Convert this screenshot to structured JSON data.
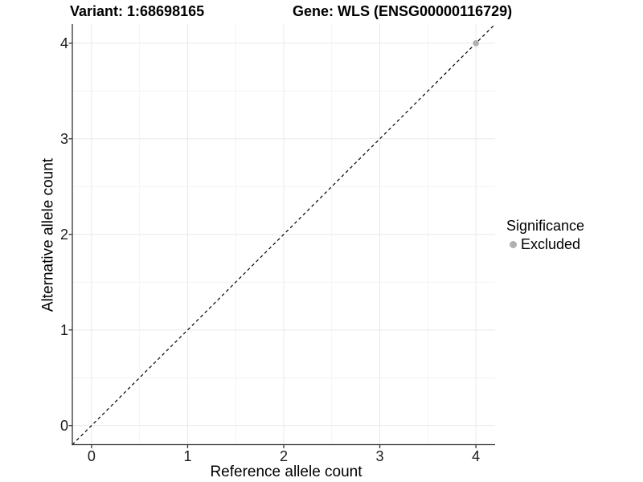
{
  "chart_data": {
    "type": "scatter",
    "title_left": "Variant: 1:68698165",
    "title_right": "Gene: WLS (ENSG00000116729)",
    "xlabel": "Reference allele count",
    "ylabel": "Alternative allele count",
    "xlim": [
      -0.2,
      4.2
    ],
    "ylim": [
      -0.2,
      4.2
    ],
    "x_ticks": [
      0,
      1,
      2,
      3,
      4
    ],
    "y_ticks": [
      0,
      1,
      2,
      3,
      4
    ],
    "x_minor_gridlines": [
      0.5,
      1.5,
      2.5,
      3.5
    ],
    "y_minor_gridlines": [
      0.5,
      1.5,
      2.5,
      3.5
    ],
    "grid": "on",
    "legend_position": "right",
    "reference_line": {
      "equation": "y = x",
      "style": "dashed",
      "color": "#000000"
    },
    "series": [
      {
        "name": "Excluded",
        "color": "#b0b0b0",
        "points": [
          {
            "x": 4,
            "y": 4
          }
        ]
      }
    ],
    "legend": {
      "title": "Significance",
      "entries": [
        {
          "label": "Excluded",
          "color": "#b0b0b0"
        }
      ]
    }
  },
  "colors": {
    "background": "#ffffff",
    "grid_major": "#e8e8e8",
    "grid_minor": "#f4f4f4",
    "axis_line": "#333333",
    "tick_text": "#1a1a1a",
    "point": "#b0b0b0"
  }
}
